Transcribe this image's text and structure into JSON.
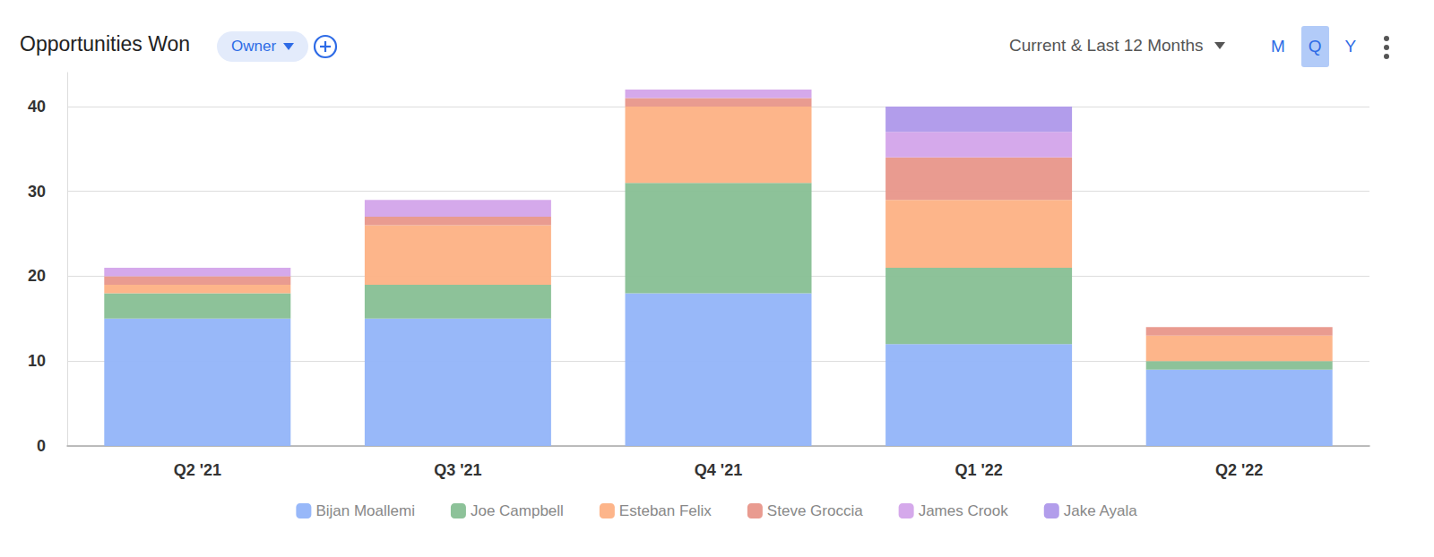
{
  "header": {
    "filter": "Owner",
    "period": "Current & Last 12 Months",
    "granularity": [
      "M",
      "Q",
      "Y"
    ],
    "selected": "Q"
  },
  "chart_data": {
    "type": "bar",
    "title": "Opportunities Won",
    "categories": [
      "Q2 '21",
      "Q3 '21",
      "Q4 '21",
      "Q1 '22",
      "Q2 '22"
    ],
    "series": [
      {
        "name": "Bijan Moallemi",
        "color": "#92b4f9",
        "values": [
          15,
          15,
          18,
          12,
          9
        ]
      },
      {
        "name": "Joe Campbell",
        "color": "#87bf94",
        "values": [
          3,
          4,
          13,
          9,
          1
        ]
      },
      {
        "name": "Esteban Felix",
        "color": "#fdb184",
        "values": [
          1,
          7,
          9,
          8,
          3
        ]
      },
      {
        "name": "Steve Groccia",
        "color": "#e8968a",
        "values": [
          1,
          1,
          1,
          5,
          1
        ]
      },
      {
        "name": "James Crook",
        "color": "#d3a4ea",
        "values": [
          1,
          2,
          1,
          3,
          0
        ]
      },
      {
        "name": "Jake Ayala",
        "color": "#ae98ea",
        "values": [
          0,
          0,
          0,
          3,
          0
        ]
      }
    ],
    "stacked": true,
    "grid": true,
    "legend": "bottom",
    "ylim": [
      0,
      44
    ],
    "yticks": [
      0,
      10,
      20,
      30,
      40
    ]
  }
}
